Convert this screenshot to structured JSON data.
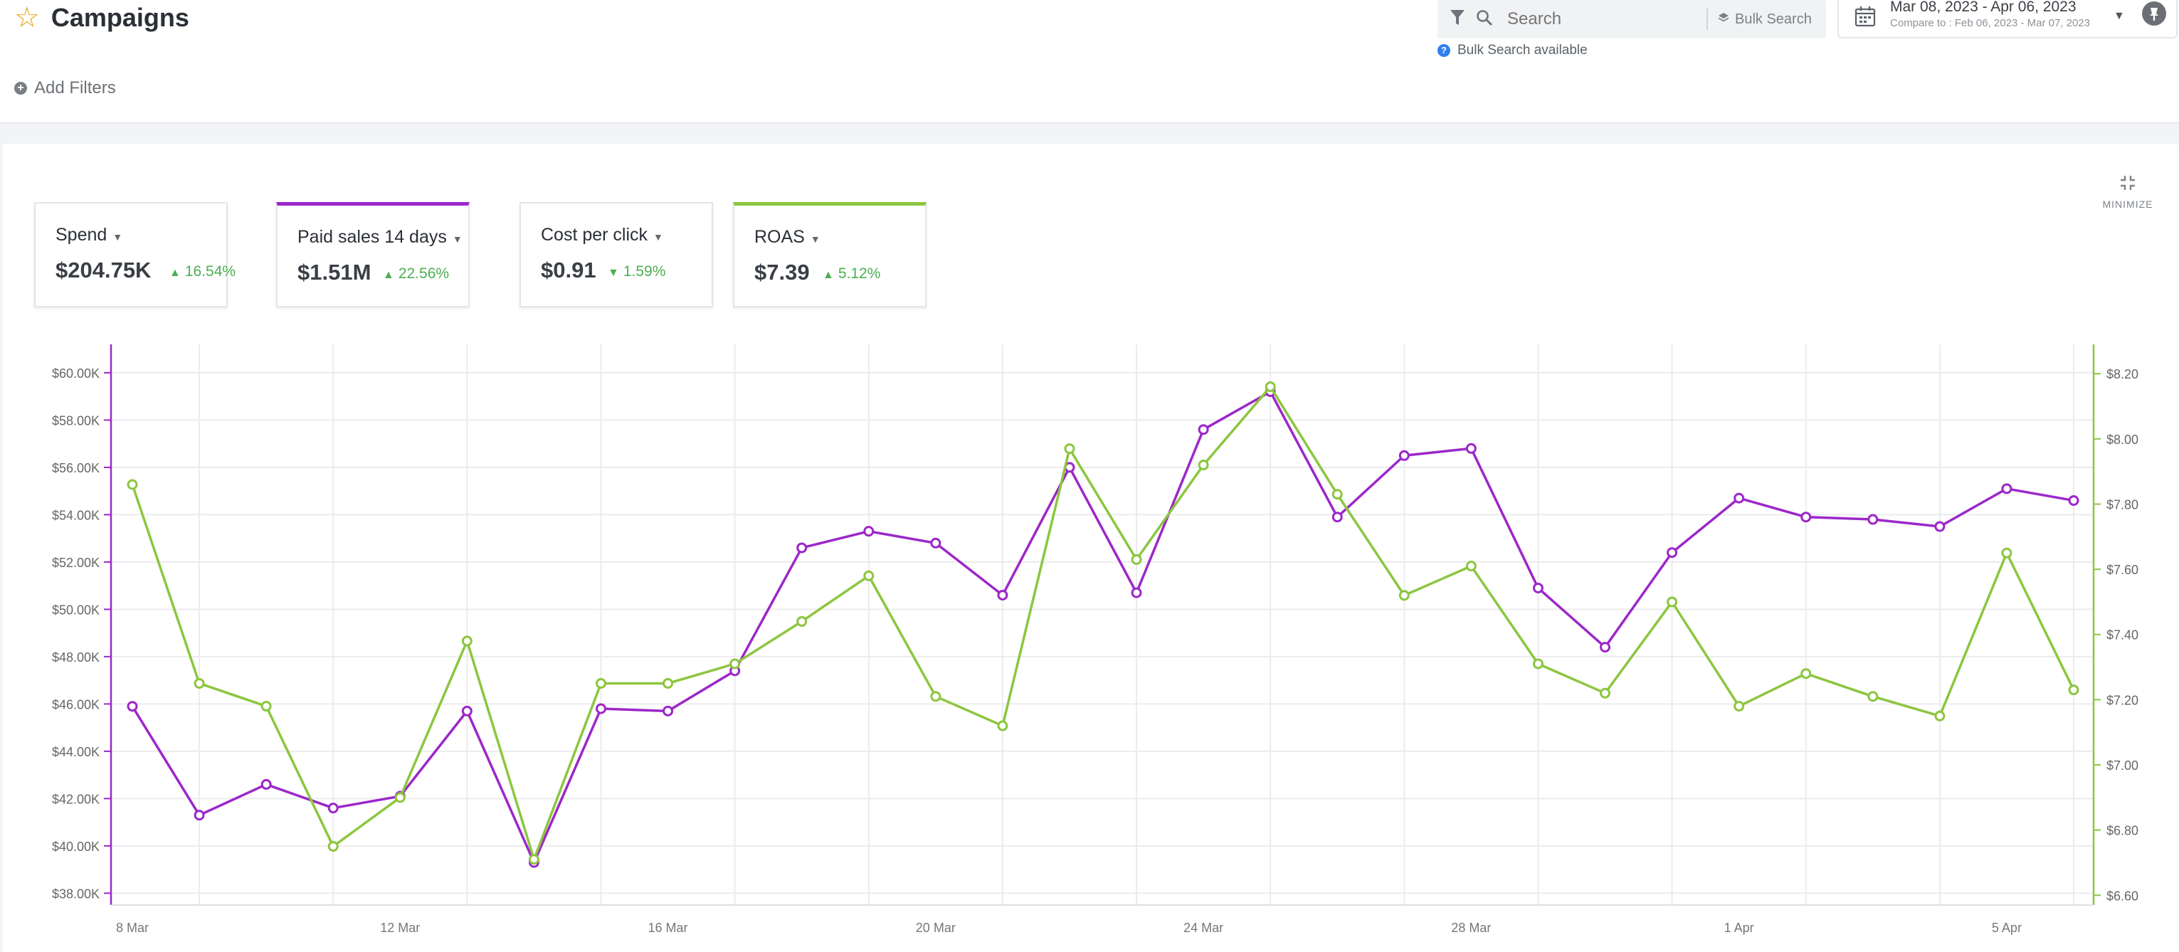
{
  "header": {
    "title": "Campaigns",
    "add_filters": "Add Filters",
    "search_placeholder": "Search",
    "bulk_search": "Bulk Search",
    "bulk_available": "Bulk Search available",
    "date_range": "Mar 08, 2023 - Apr 06, 2023",
    "compare_to": "Compare to : Feb 06, 2023 - Mar 07, 2023"
  },
  "metrics": [
    {
      "label": "Spend",
      "value": "$204.75K",
      "delta": "16.54%",
      "direction": "up"
    },
    {
      "label": "Paid sales 14 days",
      "value": "$1.51M",
      "delta": "22.56%",
      "direction": "up",
      "selected_color": "#9c27c9"
    },
    {
      "label": "Cost per click",
      "value": "$0.91",
      "delta": "1.59%",
      "direction": "down"
    },
    {
      "label": "ROAS",
      "value": "$7.39",
      "delta": "5.12%",
      "direction": "up",
      "selected_color": "#8cc63f"
    }
  ],
  "minimize_label": "MINIMIZE",
  "colors": {
    "purple": "#9c27c9",
    "green": "#8cc63f",
    "accent_star": "#e8a317",
    "delta_green": "#4caf50"
  },
  "chart_data": {
    "type": "line",
    "x": [
      "8 Mar",
      "9 Mar",
      "10 Mar",
      "11 Mar",
      "12 Mar",
      "13 Mar",
      "14 Mar",
      "15 Mar",
      "16 Mar",
      "17 Mar",
      "18 Mar",
      "19 Mar",
      "20 Mar",
      "21 Mar",
      "22 Mar",
      "23 Mar",
      "24 Mar",
      "25 Mar",
      "26 Mar",
      "27 Mar",
      "28 Mar",
      "29 Mar",
      "30 Mar",
      "31 Mar",
      "1 Apr",
      "2 Apr",
      "3 Apr",
      "4 Apr",
      "5 Apr",
      "6 Apr"
    ],
    "x_tick_labels": [
      "8 Mar",
      "12 Mar",
      "16 Mar",
      "20 Mar",
      "24 Mar",
      "28 Mar",
      "1 Apr",
      "5 Apr"
    ],
    "series": [
      {
        "name": "Paid sales 14 days",
        "axis": "left",
        "color": "#9c27c9",
        "values": [
          45900,
          41300,
          42600,
          41600,
          42100,
          45700,
          39300,
          45800,
          45700,
          47400,
          52600,
          53300,
          52800,
          50600,
          56000,
          50700,
          57600,
          59200,
          53900,
          56500,
          56800,
          50900,
          48400,
          52400,
          54700,
          53900,
          53800,
          53500,
          55100,
          54600
        ]
      },
      {
        "name": "ROAS",
        "axis": "right",
        "color": "#8cc63f",
        "values": [
          7.86,
          7.25,
          7.18,
          6.75,
          6.9,
          7.38,
          6.71,
          7.25,
          7.25,
          7.31,
          7.44,
          7.58,
          7.21,
          7.12,
          7.97,
          7.63,
          7.92,
          8.16,
          7.83,
          7.52,
          7.61,
          7.31,
          7.22,
          7.5,
          7.18,
          7.28,
          7.21,
          7.15,
          7.65,
          7.23
        ]
      }
    ],
    "y_left": {
      "ticks": [
        "$38.00K",
        "$40.00K",
        "$42.00K",
        "$44.00K",
        "$46.00K",
        "$48.00K",
        "$50.00K",
        "$52.00K",
        "$54.00K",
        "$56.00K",
        "$58.00K",
        "$60.00K"
      ],
      "ylim": [
        37500,
        61200
      ]
    },
    "y_right": {
      "ticks": [
        "$6.60",
        "$6.80",
        "$7.00",
        "$7.20",
        "$7.40",
        "$7.60",
        "$7.80",
        "$8.00",
        "$8.20"
      ],
      "ylim": [
        6.57,
        8.29
      ]
    },
    "grid": true,
    "legend": "none"
  }
}
